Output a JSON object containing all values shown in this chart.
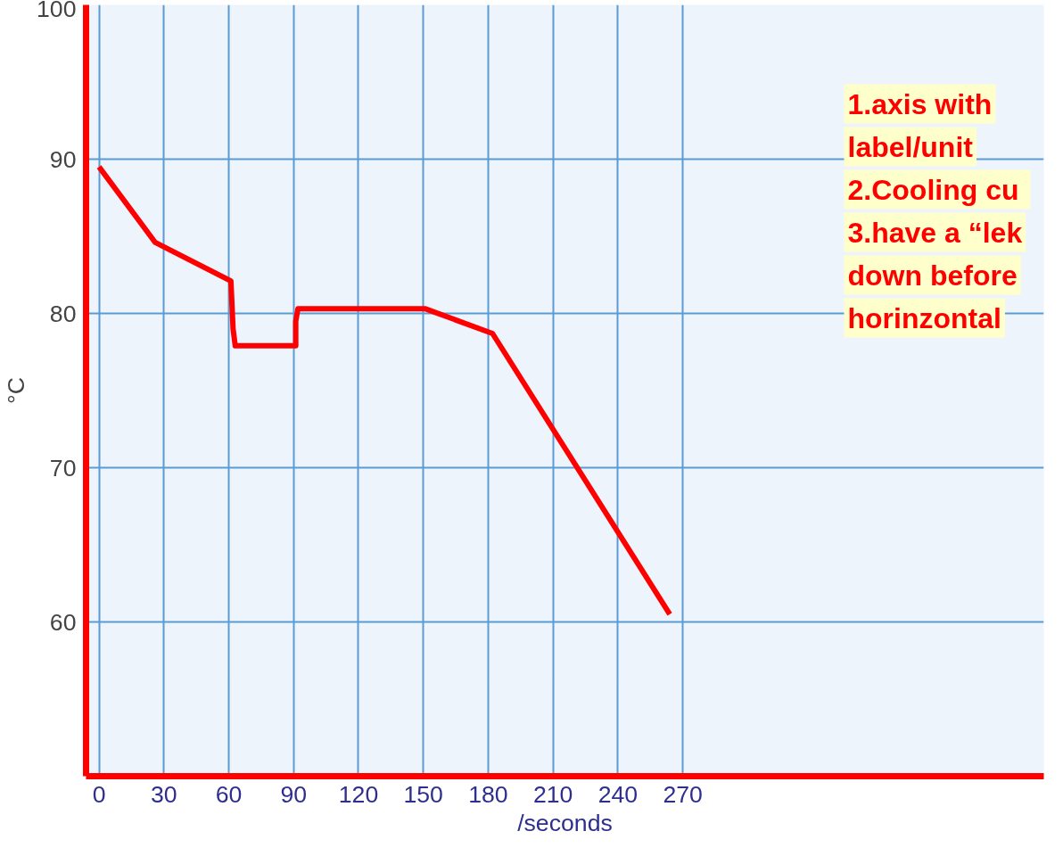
{
  "chart_data": {
    "type": "line",
    "xlabel": "/seconds",
    "ylabel": "°C",
    "x": [
      0,
      26,
      61,
      62,
      63,
      91,
      91,
      92,
      151,
      182,
      264
    ],
    "series": [
      {
        "color": "#ff0000",
        "values": [
          89.5,
          84.6,
          82.1,
          79,
          77.9,
          77.9,
          79.5,
          80.3,
          80.3,
          78.7,
          60.5
        ]
      }
    ],
    "xlim": [
      -6,
      437
    ],
    "ylim": [
      50,
      100
    ],
    "xticks": [
      0,
      30,
      60,
      90,
      120,
      150,
      180,
      210,
      240,
      270
    ],
    "yticks": [
      60,
      70,
      80,
      90,
      100
    ],
    "grid": true,
    "line_style": "solid",
    "marker": "none",
    "annotations": [
      "1.axis with\nlabel/unit\n2.Cooling  cu\n3.have a “lek\ndown before\nhorinzontal"
    ]
  }
}
